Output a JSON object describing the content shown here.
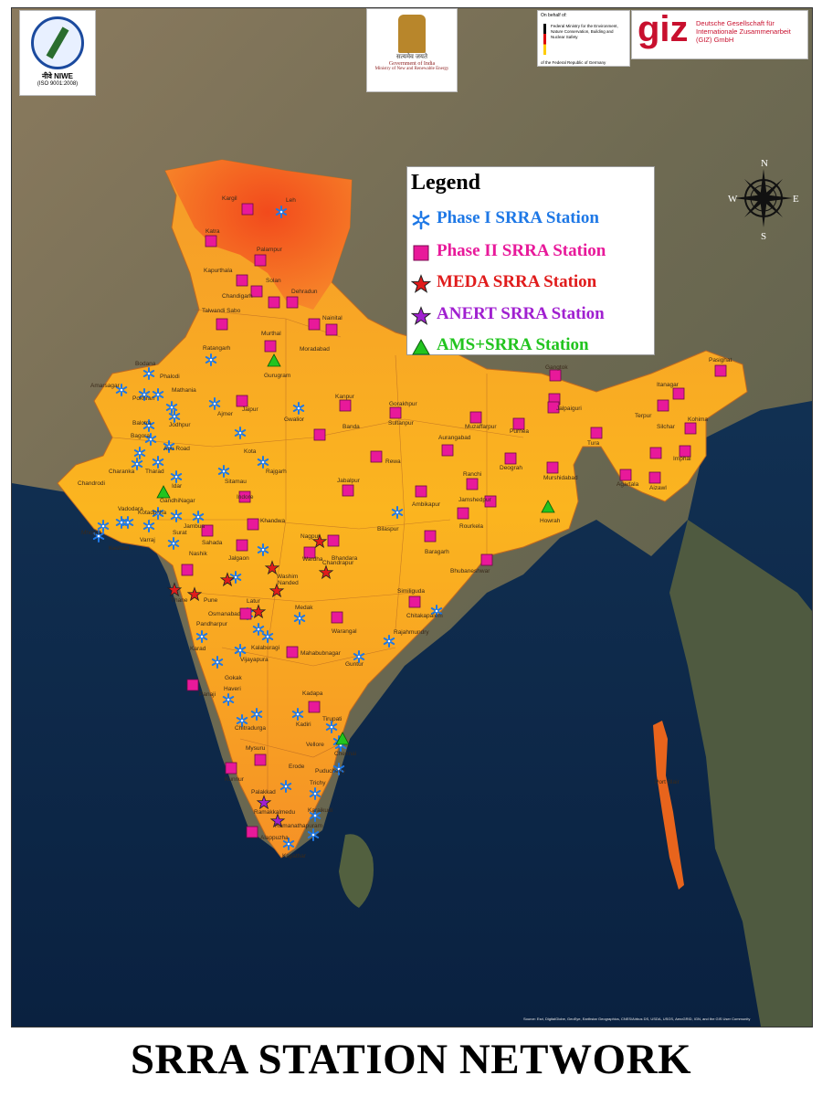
{
  "title": "SRRA STATION NETWORK",
  "logos": {
    "niwe": {
      "name": "नीवे NIWE",
      "iso": "(ISO 9001:2008)"
    },
    "moi": {
      "motto": "सत्यमेव जयते",
      "line1": "Government of India",
      "line2": "Ministry of New and Renewable Energy"
    },
    "bmu": {
      "on_behalf": "On behalf of:",
      "ministry": "Federal Ministry for the Environment, Nature Conservation, Building and Nuclear Safety",
      "footer": "of the Federal Republic of Germany"
    },
    "giz": {
      "mark": "giz",
      "name": "Deutsche Gesellschaft für Internationale Zusammenarbeit (GIZ) GmbH"
    }
  },
  "legend": {
    "title": "Legend",
    "items": [
      {
        "label": "Phase I SRRA Station",
        "symbol": "asterisk",
        "color": "#1e78e6"
      },
      {
        "label": "Phase II SRRA Station",
        "symbol": "square",
        "color": "#e8199a"
      },
      {
        "label": "MEDA SRRA Station",
        "symbol": "star",
        "color": "#e01b1b"
      },
      {
        "label": "ANERT SRRA Station",
        "symbol": "star",
        "color": "#a020d0"
      },
      {
        "label": "AMS+SRRA Station",
        "symbol": "triangle",
        "color": "#22c41f"
      }
    ]
  },
  "compass": {
    "n": "N",
    "s": "S",
    "e": "E",
    "w": "W"
  },
  "credit": "Source: Esri, DigitalGlobe, GeoEye, Earthstar Geographics, CNES/Airbus DS, USDA, USGS, AeroGRID, IGN, and the GIS User Community",
  "map_labels": [
    "Kargil",
    "Leh",
    "Katra",
    "Palampur",
    "Kapurthala",
    "Solan",
    "Dehradun",
    "Chandigarh",
    "Talwandi Sabo",
    "Nainital",
    "Murthal",
    "Moradabad",
    "Gurugram",
    "Ratangarh",
    "Bodana",
    "Phalodi",
    "Amarsagar",
    "Pokhran",
    "Mathania",
    "Jodhpur",
    "Ajmer",
    "Jaipur",
    "Gwalior",
    "Kanpur",
    "Gorakhpur",
    "Sultanpur",
    "Muzaffarpur",
    "Purnea",
    "Gangtok",
    "Itanagar",
    "Pasighat",
    "Jalpaiguri",
    "Terpur",
    "Kohima",
    "Tura",
    "Silchar",
    "Imphal",
    "Aizawl",
    "Agartala",
    "Balotra",
    "Bagora",
    "Abu Road",
    "Kota",
    "Banda",
    "Rewa",
    "Aurangabad",
    "Deograh",
    "Murshidabad",
    "Charanka",
    "Tharad",
    "Idar",
    "Sitamau",
    "Rajgarh",
    "Jabalpur",
    "Ranchi",
    "Jamshedpur",
    "Chandrodi",
    "GandhiNagar",
    "Indore",
    "Ambikapur",
    "Howrah",
    "Vadodara",
    "Kotadpitha",
    "Jambua",
    "Khandwa",
    "Bilaspur",
    "Rourkela",
    "Mhogat",
    "Keshod",
    "Varraj",
    "Surat",
    "Sahada",
    "Jalgaon",
    "Nagpur",
    "Bhandara",
    "Wardha",
    "Chandrapur",
    "Baragarh",
    "Nashik",
    "Washim",
    "Bhubaneshwar",
    "Thane",
    "Pune",
    "Nanded",
    "Similiguda",
    "Latur",
    "Chitakapalem",
    "Osmanabad",
    "Medak",
    "Warangal",
    "Pandharpur",
    "Rajahmundry",
    "Karad",
    "Kalaburagi",
    "Mahabubnagar",
    "Vijayapura",
    "Gokak",
    "Guntur",
    "Panaji",
    "Haveri",
    "Kadapa",
    "Kadiri",
    "Tirupati",
    "Chitradurga",
    "Vellore",
    "Chennai",
    "Mysuru",
    "Kunnur",
    "Puducherry",
    "Erode",
    "Palakkad",
    "Trichy",
    "Karaikudi",
    "Ramakkalmedu",
    "Ramanathapuram",
    "Alappuzha",
    "Kayathar",
    "Port Blair"
  ]
}
